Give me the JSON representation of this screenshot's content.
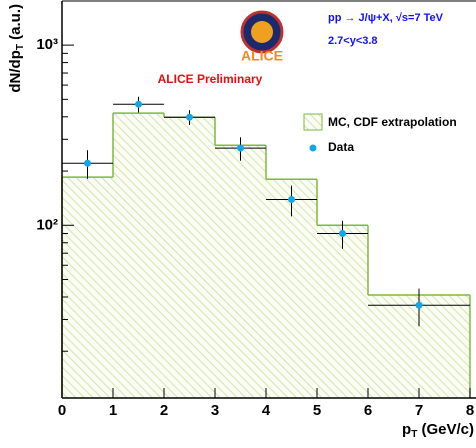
{
  "chart_data": {
    "type": "histogram",
    "experiment": "ALICE",
    "title": "pp → J/ψ+X, √s=7 TeV",
    "subtitle": "2.7<y<3.8",
    "annotation": "ALICE Preliminary",
    "xlabel": "p_T (GeV/c)",
    "ylabel": "dN/dp_T (a.u.)",
    "log_y": true,
    "xlim": [
      0,
      8
    ],
    "xticks": [
      0,
      1,
      2,
      3,
      4,
      5,
      6,
      7,
      8
    ],
    "ylim": [
      11,
      1780
    ],
    "yticks": [
      {
        "value": 100,
        "label": "10²"
      },
      {
        "value": 1000,
        "label": "10³"
      }
    ],
    "yminor_ticks": [
      20,
      30,
      40,
      50,
      60,
      70,
      80,
      90,
      200,
      300,
      400,
      500,
      600,
      700,
      800,
      900
    ],
    "legend": "upper right",
    "series": [
      {
        "name": "MC, CDF extrapolation",
        "type": "histogram",
        "color": "#7fb83f",
        "hatch_color": "#c8e09a",
        "bins": [
          0,
          1,
          2,
          3,
          4,
          5,
          6,
          8
        ],
        "values": [
          185,
          419,
          398,
          278,
          180,
          100,
          41
        ]
      },
      {
        "name": "Data",
        "type": "errorbar",
        "color": "#10a8e8",
        "x": [
          0.5,
          1.5,
          2.5,
          3.5,
          4.5,
          5.5,
          7
        ],
        "xerr": [
          0.5,
          0.5,
          0.5,
          0.5,
          0.5,
          0.5,
          1
        ],
        "values": [
          221,
          470,
          398,
          268,
          139,
          90,
          36
        ],
        "errors": [
          40,
          47,
          38,
          40,
          27,
          16,
          8.5
        ]
      }
    ]
  }
}
